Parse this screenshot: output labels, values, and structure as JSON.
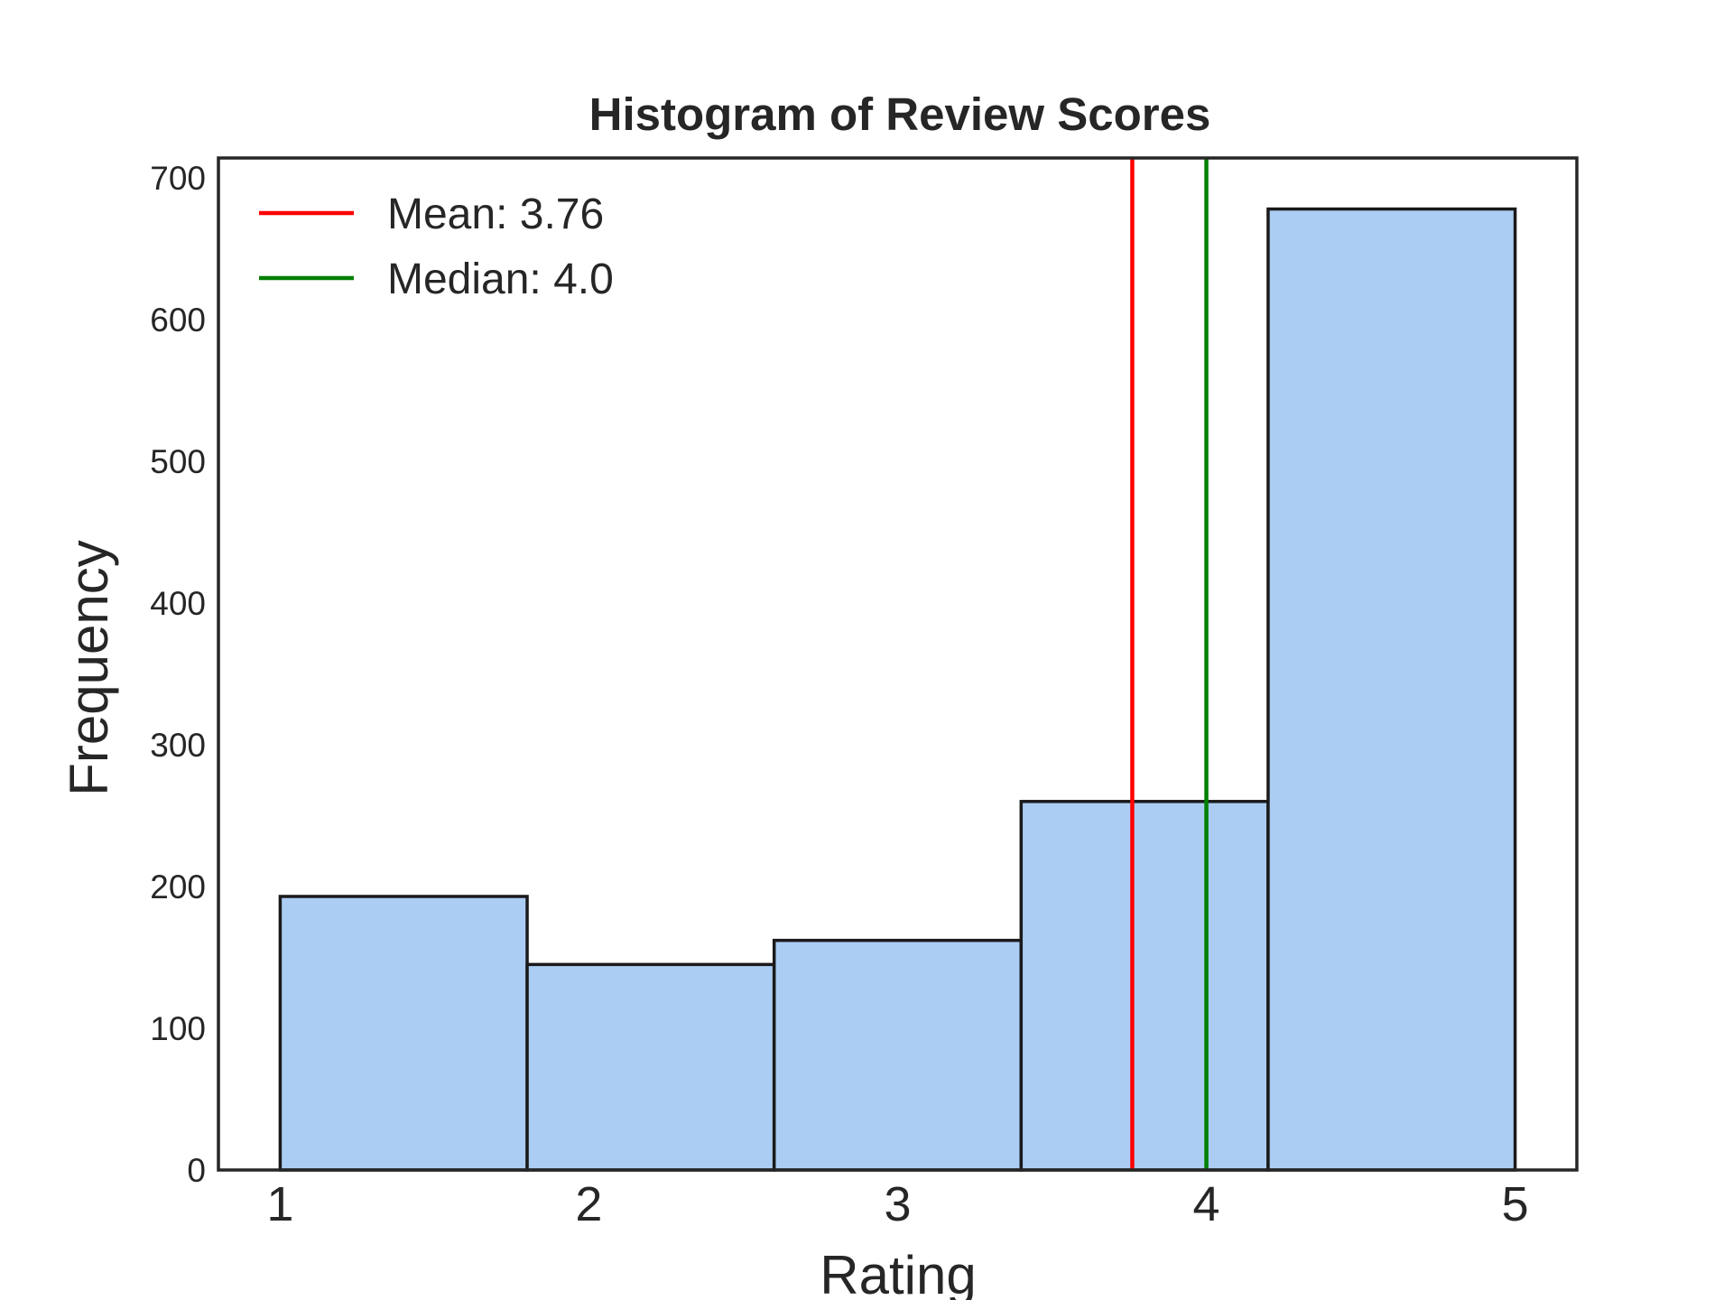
{
  "chart_data": {
    "type": "bar",
    "title": "Histogram of Review Scores",
    "xlabel": "Rating",
    "ylabel": "Frequency",
    "bins": [
      {
        "from": 1.0,
        "to": 1.8,
        "value": 193
      },
      {
        "from": 1.8,
        "to": 2.6,
        "value": 145
      },
      {
        "from": 2.6,
        "to": 3.4,
        "value": 162
      },
      {
        "from": 3.4,
        "to": 4.2,
        "value": 260
      },
      {
        "from": 4.2,
        "to": 5.0,
        "value": 678
      }
    ],
    "xlim": [
      0.8,
      5.2
    ],
    "ylim": [
      0,
      714
    ],
    "xticks": [
      1,
      2,
      3,
      4,
      5
    ],
    "yticks": [
      0,
      100,
      200,
      300,
      400,
      500,
      600,
      700
    ],
    "grid": false,
    "bar_color": "#abcdf4",
    "edge_color": "#1a1a1a",
    "reference_lines": [
      {
        "name": "Mean: 3.76",
        "x": 3.76,
        "color": "#ff0000"
      },
      {
        "name": "Median: 4.0",
        "x": 4.0,
        "color": "#008000"
      }
    ],
    "legend": {
      "position": "top-left",
      "entries": [
        "Mean: 3.76",
        "Median: 4.0"
      ]
    }
  }
}
